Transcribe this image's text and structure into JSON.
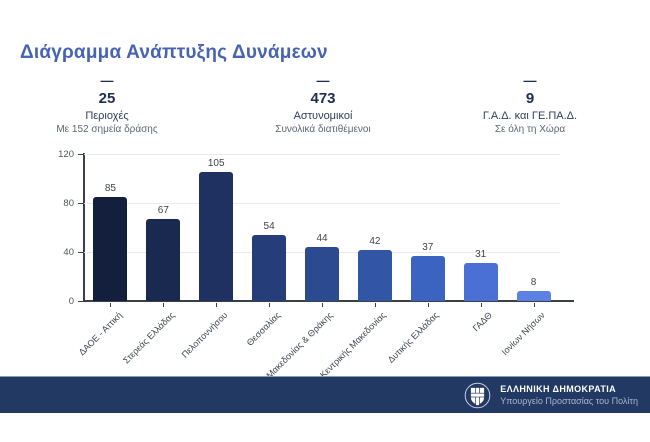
{
  "page": {
    "title": "Διάγραμμα Ανάπτυξης Δυνάμεων"
  },
  "stats": [
    {
      "dash": "—",
      "value": "25",
      "label": "Περιοχές",
      "sublabel": "Με 152 σημεία δράσης"
    },
    {
      "dash": "—",
      "value": "473",
      "label": "Αστυνομικοί",
      "sublabel": "Συνολικά διατιθέμενοι"
    },
    {
      "dash": "—",
      "value": "9",
      "label": "Γ.Α.Δ. και ΓΕ.ΠΑ.Δ.",
      "sublabel": "Σε όλη τη Χώρα"
    }
  ],
  "chart_data": {
    "type": "bar",
    "title": "Διάγραμμα Ανάπτυξης Δυνάμεων",
    "categories": [
      "ΔΑΟΕ - Αττική",
      "Στερεάς Ελλάδας",
      "Πελοποννήσου",
      "Θεσσαλίας",
      "Ανατ. Μακεδονίας & Θράκης",
      "Κεντρικής Μακεδονίας",
      "Δυτικής Ελλάδας",
      "ΓΑΔΘ",
      "Ιονίων Νήσων"
    ],
    "values": [
      85,
      67,
      105,
      54,
      44,
      42,
      37,
      31,
      8
    ],
    "bar_colors": [
      "#141f3e",
      "#1a2950",
      "#1e3161",
      "#253d78",
      "#2b4a90",
      "#3256a6",
      "#3a63c2",
      "#4a70d6",
      "#5c80e6"
    ],
    "xlabel": "",
    "ylabel": "",
    "ylim": [
      0,
      120
    ],
    "yticks": [
      0,
      40,
      80,
      120
    ],
    "grid": true,
    "legend": "none",
    "value_labels": true
  },
  "footer": {
    "org": "ΕΛΛΗΝΙΚΗ ΔΗΜΟΚΡΑΤΙΑ",
    "ministry": "Υπουργείο Προστασίας του Πολίτη"
  },
  "colors": {
    "title_accent": "#4763b3",
    "stat_navy": "#1f2c55",
    "footer_bar": "#223a63",
    "axis": "#3a4046",
    "gridline": "#e9ebee"
  }
}
